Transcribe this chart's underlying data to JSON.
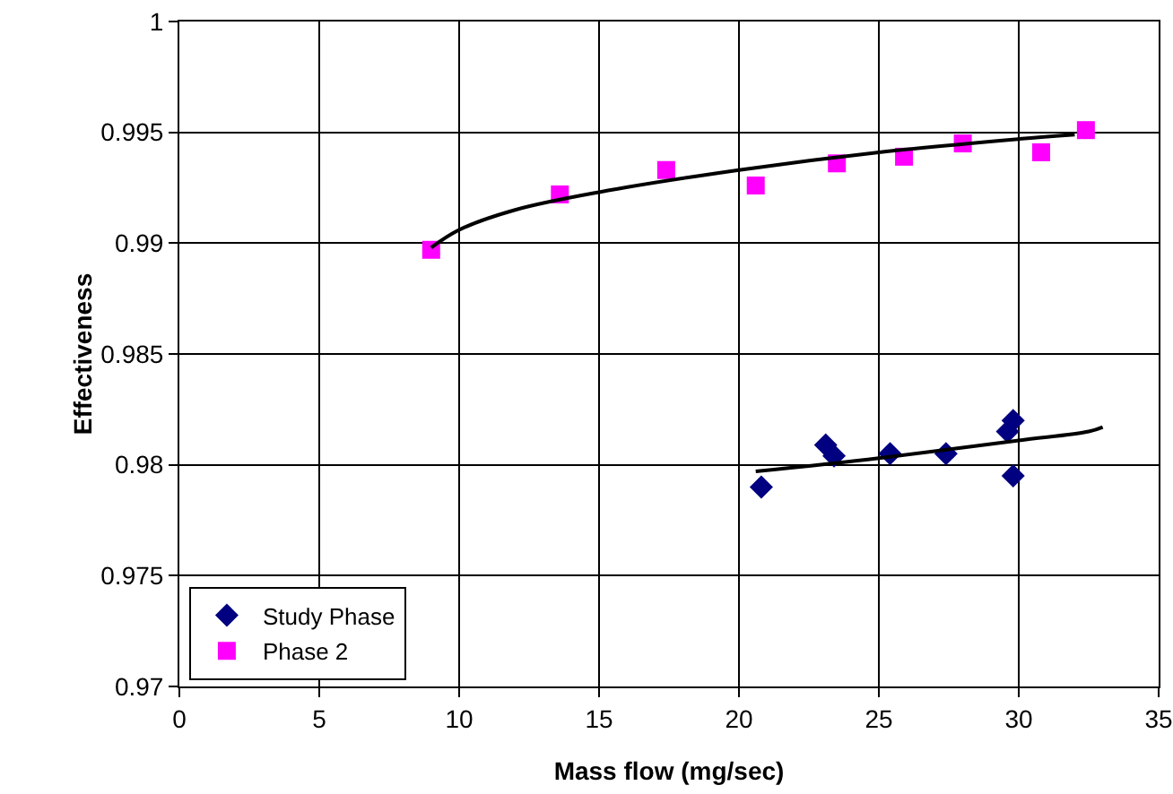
{
  "chart_data": {
    "type": "scatter",
    "xlabel": "Mass flow (mg/sec)",
    "ylabel": "Effectiveness",
    "xlim": [
      0,
      35
    ],
    "xticks": [
      0,
      5,
      10,
      15,
      20,
      25,
      30,
      35
    ],
    "ylim": [
      0.97,
      1
    ],
    "yticks": [
      0.97,
      0.975,
      0.98,
      0.985,
      0.99,
      0.995,
      1
    ],
    "grid": true,
    "legend": "bottom left",
    "series": [
      {
        "name": "Study Phase",
        "color": "#000080",
        "marker": "diamond",
        "x": [
          20.8,
          23.1,
          23.4,
          25.4,
          27.4,
          29.6,
          29.8,
          29.8
        ],
        "values": [
          0.979,
          0.9809,
          0.9804,
          0.9805,
          0.9805,
          0.9815,
          0.982,
          0.9795
        ]
      },
      {
        "name": "Phase 2",
        "color": "#ff00ff",
        "marker": "square",
        "x": [
          9.0,
          13.6,
          17.4,
          20.6,
          23.5,
          25.9,
          28.0,
          30.8,
          32.4
        ],
        "values": [
          0.9897,
          0.9922,
          0.9933,
          0.9926,
          0.9936,
          0.9939,
          0.9945,
          0.9941,
          0.9951
        ]
      },
      {
        "type": "line",
        "color": "#000000",
        "marker": "none",
        "x": [
          9,
          10,
          12,
          15,
          20,
          25,
          30,
          32
        ],
        "values": [
          0.9898,
          0.9906,
          0.9915,
          0.9923,
          0.9933,
          0.9941,
          0.9947,
          0.9949
        ]
      },
      {
        "type": "line",
        "color": "#000000",
        "marker": "none",
        "x": [
          20.6,
          25,
          30,
          32.5,
          33
        ],
        "values": [
          0.9797,
          0.9803,
          0.9811,
          0.9815,
          0.9817
        ]
      }
    ]
  }
}
